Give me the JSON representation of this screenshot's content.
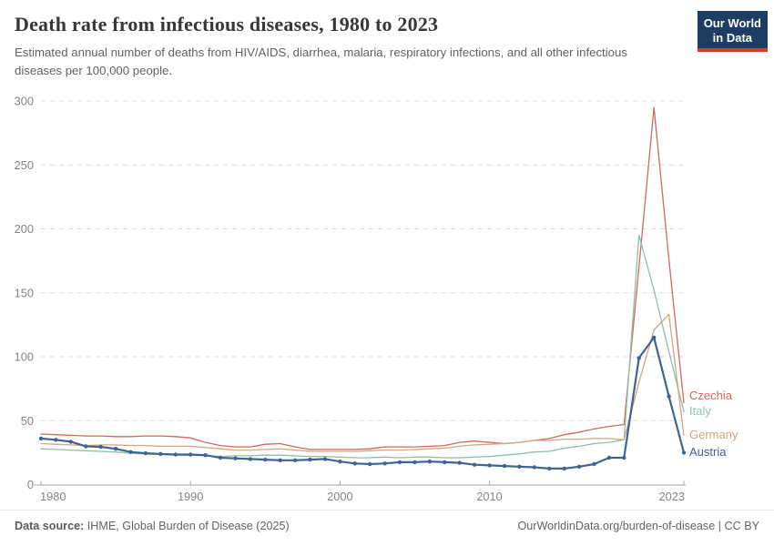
{
  "header": {
    "title": "Death rate from infectious diseases, 1980 to 2023",
    "subtitle": "Estimated annual number of deaths from HIV/AIDS, diarrhea, malaria, respiratory infections, and all other infectious diseases per 100,000 people."
  },
  "logo": {
    "line1": "Our World",
    "line2": "in Data",
    "bg_color": "#1d3d63",
    "accent_color": "#d93a2b"
  },
  "chart_data": {
    "type": "line",
    "title": "Death rate from infectious diseases, 1980 to 2023",
    "xlabel": "",
    "ylabel": "",
    "ylim": [
      0,
      300
    ],
    "yticks": [
      0,
      50,
      100,
      150,
      200,
      250,
      300
    ],
    "xticks": [
      1980,
      1990,
      2000,
      2010,
      2023
    ],
    "grid": "horizontal-dashed",
    "legend_position": "right-end-labels",
    "axis_color": "#a8a8a8",
    "tick_label_color": "#858585",
    "gridline_color": "#dcdcdc",
    "x": [
      1980,
      1981,
      1982,
      1983,
      1984,
      1985,
      1986,
      1987,
      1988,
      1989,
      1990,
      1991,
      1992,
      1993,
      1994,
      1995,
      1996,
      1997,
      1998,
      1999,
      2000,
      2001,
      2002,
      2003,
      2004,
      2005,
      2006,
      2007,
      2008,
      2009,
      2010,
      2011,
      2012,
      2013,
      2014,
      2015,
      2016,
      2017,
      2018,
      2019,
      2020,
      2021,
      2022,
      2023
    ],
    "series": [
      {
        "name": "Czechia",
        "color": "#d2695a",
        "markers": false,
        "emphasis": false,
        "values": [
          39.5,
          39,
          38.5,
          38,
          38,
          37.5,
          37.5,
          38,
          38,
          37.5,
          36.5,
          33,
          30.5,
          29.5,
          29.5,
          31.5,
          32,
          29.5,
          27.5,
          27.5,
          27.5,
          27.5,
          28,
          29.5,
          29.5,
          29.5,
          30,
          30.5,
          33,
          34,
          33,
          32,
          33,
          34.5,
          36,
          39,
          41,
          43.5,
          45.5,
          47,
          170,
          295,
          176,
          64
        ]
      },
      {
        "name": "Italy",
        "color": "#8fbfaa",
        "markers": false,
        "emphasis": false,
        "values": [
          28,
          27.5,
          27,
          26.5,
          26,
          25.5,
          24.5,
          24,
          23.5,
          23,
          23,
          22.5,
          22,
          22.5,
          22.5,
          23,
          23,
          22.5,
          22,
          22,
          21.5,
          21,
          21,
          21.5,
          21,
          21.5,
          21.5,
          21,
          21,
          21.5,
          22,
          23,
          24,
          25.5,
          26,
          28.5,
          30,
          32,
          33,
          35,
          195,
          152,
          104,
          57
        ]
      },
      {
        "name": "Germany",
        "color": "#d0a87e",
        "markers": false,
        "emphasis": false,
        "values": [
          32,
          31.5,
          31,
          30.5,
          31,
          31,
          30.5,
          30.5,
          30,
          30,
          30,
          29,
          28,
          27,
          27,
          27.5,
          28,
          27,
          26,
          26,
          26,
          26,
          26.5,
          27,
          27,
          27.5,
          28,
          28.5,
          30,
          31,
          31.5,
          32,
          33,
          34.5,
          34.5,
          35.5,
          35.5,
          36,
          36,
          35,
          80,
          121,
          133,
          38.5
        ]
      },
      {
        "name": "Austria",
        "color": "#3d6493",
        "markers": true,
        "emphasis": true,
        "values": [
          36,
          35,
          33.5,
          30,
          29.5,
          28,
          25.5,
          24.5,
          24,
          23.5,
          23.5,
          23,
          21,
          20.5,
          20,
          19.5,
          19,
          19,
          19.5,
          20,
          18,
          16.5,
          16,
          16.5,
          17.5,
          17.5,
          18,
          17.5,
          17,
          15.5,
          15,
          14.5,
          14,
          13.5,
          12.5,
          12.5,
          14,
          16,
          21,
          21,
          99,
          115,
          69,
          25
        ]
      }
    ]
  },
  "footer": {
    "source_label": "Data source:",
    "source_text": " IHME, Global Burden of Disease (2025)",
    "link_text": "OurWorldinData.org/burden-of-disease | CC BY"
  }
}
